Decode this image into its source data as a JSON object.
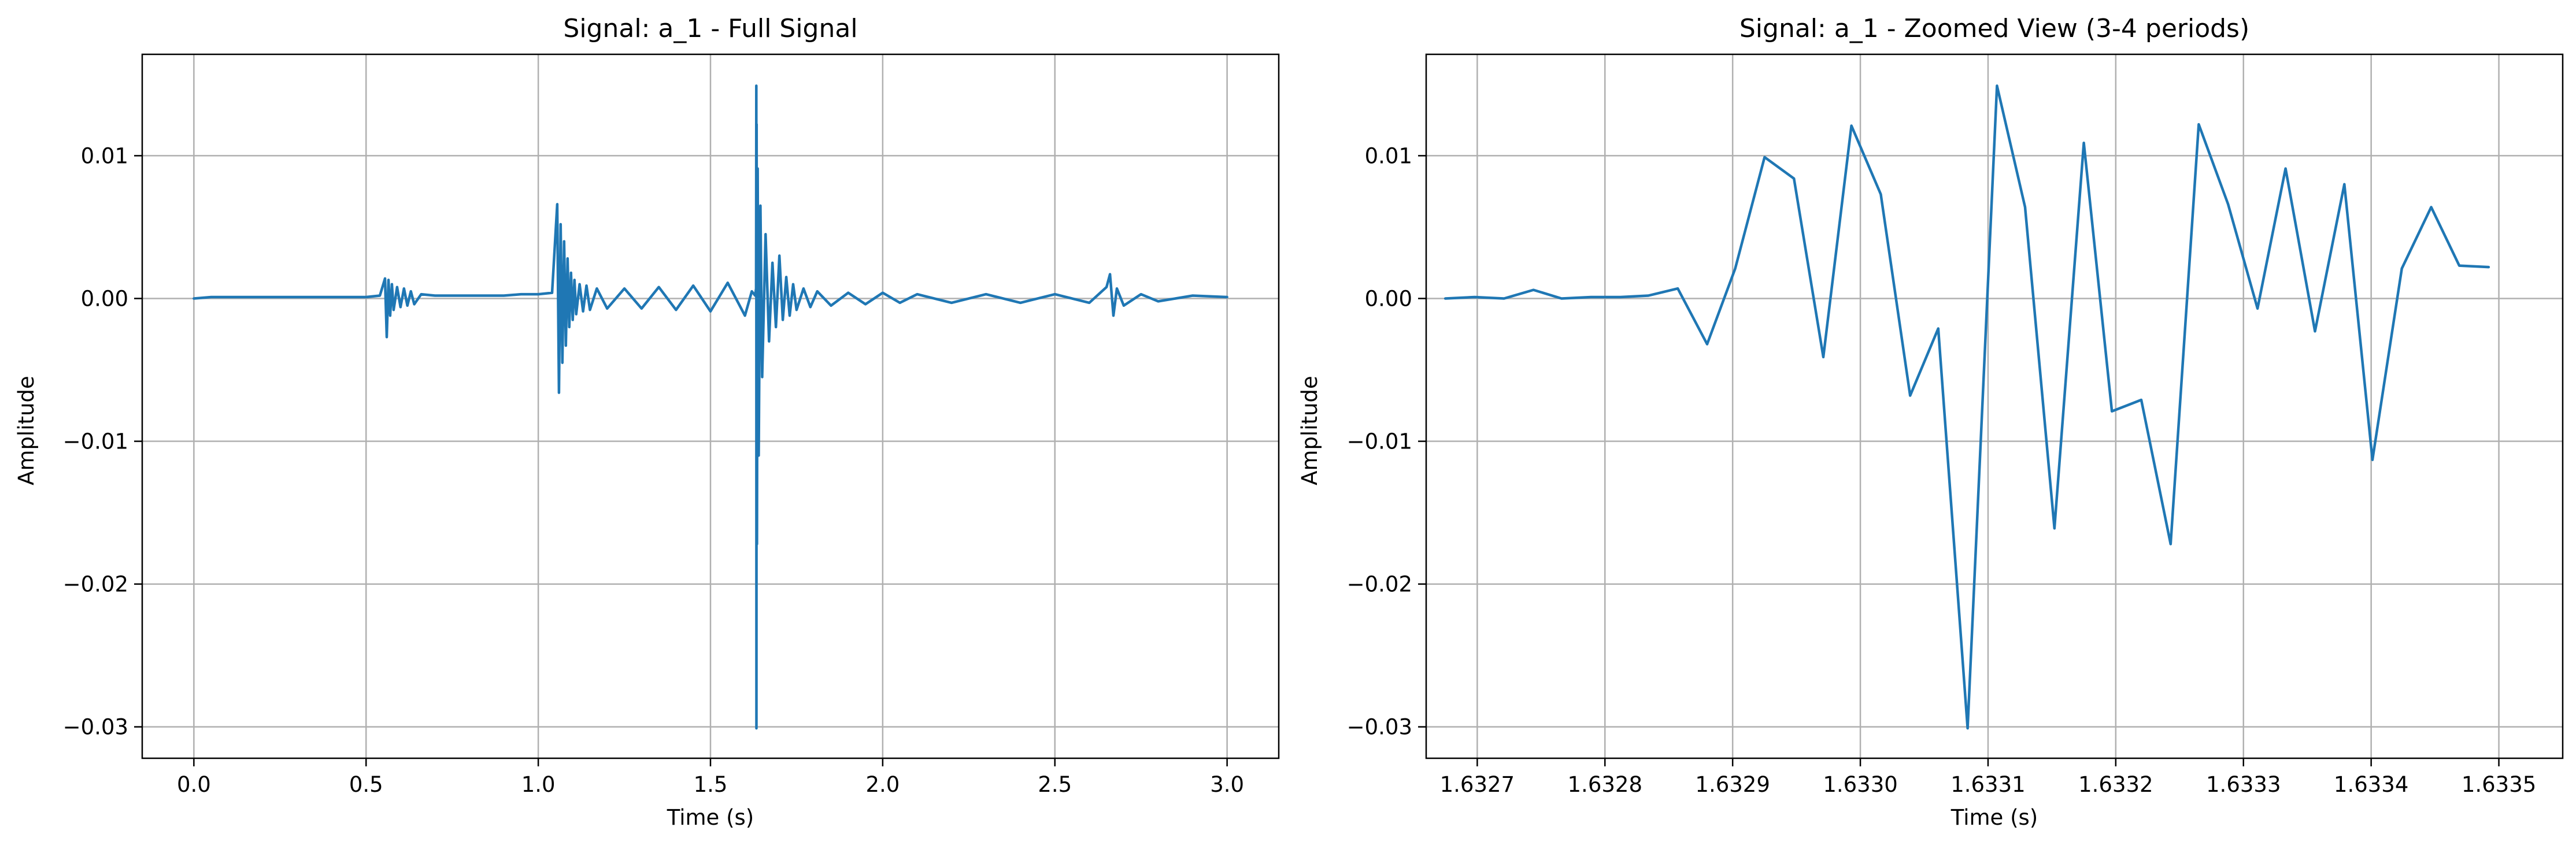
{
  "chart_data": [
    {
      "type": "line",
      "title": "Signal: a_1 - Full Signal",
      "xlabel": "Time (s)",
      "ylabel": "Amplitude",
      "xlim": [
        -0.15,
        3.15
      ],
      "ylim": [
        -0.0322,
        0.0171
      ],
      "xticks": [
        0.0,
        0.5,
        1.0,
        1.5,
        2.0,
        2.5,
        3.0
      ],
      "xtick_labels": [
        "0.0",
        "0.5",
        "1.0",
        "1.5",
        "2.0",
        "2.5",
        "3.0"
      ],
      "yticks": [
        0.01,
        0.0,
        -0.01,
        -0.02,
        -0.03
      ],
      "ytick_labels": [
        "0.01",
        "0.00",
        "−0.01",
        "−0.02",
        "−0.03"
      ],
      "grid": true,
      "legend": "none",
      "color": "#1f77b4",
      "series": [
        {
          "x": [
            0.0,
            0.05,
            0.1,
            0.15,
            0.2,
            0.25,
            0.3,
            0.35,
            0.4,
            0.45,
            0.5,
            0.54,
            0.555,
            0.56,
            0.565,
            0.57,
            0.575,
            0.58,
            0.59,
            0.6,
            0.61,
            0.62,
            0.63,
            0.64,
            0.66,
            0.7,
            0.75,
            0.8,
            0.85,
            0.9,
            0.95,
            1.0,
            1.04,
            1.055,
            1.06,
            1.065,
            1.07,
            1.075,
            1.08,
            1.085,
            1.09,
            1.095,
            1.1,
            1.105,
            1.11,
            1.12,
            1.13,
            1.14,
            1.15,
            1.17,
            1.2,
            1.25,
            1.3,
            1.35,
            1.4,
            1.45,
            1.5,
            1.55,
            1.6,
            1.62,
            1.63,
            1.6325,
            1.6331,
            1.6335,
            1.634,
            1.635,
            1.637,
            1.64,
            1.645,
            1.65,
            1.66,
            1.67,
            1.68,
            1.69,
            1.7,
            1.71,
            1.72,
            1.73,
            1.74,
            1.75,
            1.77,
            1.79,
            1.81,
            1.85,
            1.9,
            1.95,
            2.0,
            2.05,
            2.1,
            2.2,
            2.3,
            2.4,
            2.5,
            2.6,
            2.65,
            2.66,
            2.67,
            2.68,
            2.7,
            2.75,
            2.8,
            2.9,
            3.0
          ],
          "y": [
            0.0,
            0.0001,
            0.0001,
            0.0001,
            0.0001,
            0.0001,
            0.0001,
            0.0001,
            0.0001,
            0.0001,
            0.0001,
            0.0002,
            0.0014,
            -0.0027,
            0.0013,
            -0.0012,
            0.001,
            -0.0008,
            0.0008,
            -0.0006,
            0.0007,
            -0.0005,
            0.0005,
            -0.0004,
            0.0003,
            0.0002,
            0.0002,
            0.0002,
            0.0002,
            0.0002,
            0.0003,
            0.0003,
            0.0004,
            0.0066,
            -0.0066,
            0.0052,
            -0.0045,
            0.004,
            -0.0033,
            0.0028,
            -0.002,
            0.0018,
            -0.0015,
            0.0013,
            -0.0011,
            0.001,
            -0.0009,
            0.0009,
            -0.0008,
            0.0007,
            -0.0007,
            0.0007,
            -0.0007,
            0.0008,
            -0.0008,
            0.0009,
            -0.0009,
            0.0011,
            -0.0012,
            0.0005,
            0.0002,
            0.0007,
            0.0149,
            -0.0301,
            0.0122,
            -0.0172,
            0.0091,
            -0.011,
            0.0065,
            -0.0055,
            0.0045,
            -0.003,
            0.0025,
            -0.002,
            0.003,
            -0.0015,
            0.0015,
            -0.0012,
            0.001,
            -0.0008,
            0.0007,
            -0.0006,
            0.0005,
            -0.0005,
            0.0004,
            -0.0004,
            0.0004,
            -0.0003,
            0.0003,
            -0.0003,
            0.0003,
            -0.0003,
            0.0003,
            -0.0003,
            0.0008,
            0.0017,
            -0.0012,
            0.0007,
            -0.0005,
            0.0003,
            -0.0002,
            0.0002,
            0.0001
          ]
        }
      ]
    },
    {
      "type": "line",
      "title": "Signal: a_1 - Zoomed View (3-4 periods)",
      "xlabel": "Time (s)",
      "ylabel": "Amplitude",
      "xlim": [
        1.63266,
        1.63355
      ],
      "ylim": [
        -0.0322,
        0.0171
      ],
      "xticks": [
        1.6327,
        1.6328,
        1.6329,
        1.633,
        1.6331,
        1.6332,
        1.6333,
        1.6334,
        1.6335
      ],
      "xtick_labels": [
        "1.6327",
        "1.6328",
        "1.6329",
        "1.6330",
        "1.6331",
        "1.6332",
        "1.6333",
        "1.6334",
        "1.6335"
      ],
      "yticks": [
        0.01,
        0.0,
        -0.01,
        -0.02,
        -0.03
      ],
      "ytick_labels": [
        "0.01",
        "0.00",
        "−0.01",
        "−0.02",
        "−0.03"
      ],
      "grid": true,
      "legend": "none",
      "color": "#1f77b4",
      "series": [
        {
          "x": [
            1.632675,
            1.632698,
            1.632721,
            1.632744,
            1.632766,
            1.632789,
            1.632812,
            1.632834,
            1.632857,
            1.63288,
            1.632902,
            1.632925,
            1.632948,
            1.632971,
            1.632993,
            1.633016,
            1.633039,
            1.633061,
            1.633084,
            1.633107,
            1.633129,
            1.633152,
            1.633175,
            1.633197,
            1.63322,
            1.633243,
            1.633265,
            1.633288,
            1.633311,
            1.633333,
            1.633356,
            1.633379,
            1.633401,
            1.633424,
            1.633447,
            1.633469,
            1.633492
          ],
          "y": [
            0.0,
            0.0001,
            0.0,
            0.0006,
            0.0,
            0.0001,
            0.0001,
            0.0002,
            0.0007,
            -0.0032,
            0.0021,
            0.0099,
            0.0084,
            -0.0041,
            0.0121,
            0.0073,
            -0.0068,
            -0.0021,
            -0.0301,
            0.0149,
            0.0064,
            -0.0161,
            0.0109,
            -0.0079,
            -0.0071,
            -0.0172,
            0.0122,
            0.0066,
            -0.0007,
            0.0091,
            -0.0023,
            0.008,
            -0.0113,
            0.0021,
            0.0064,
            0.0023,
            0.0022
          ]
        }
      ]
    }
  ]
}
